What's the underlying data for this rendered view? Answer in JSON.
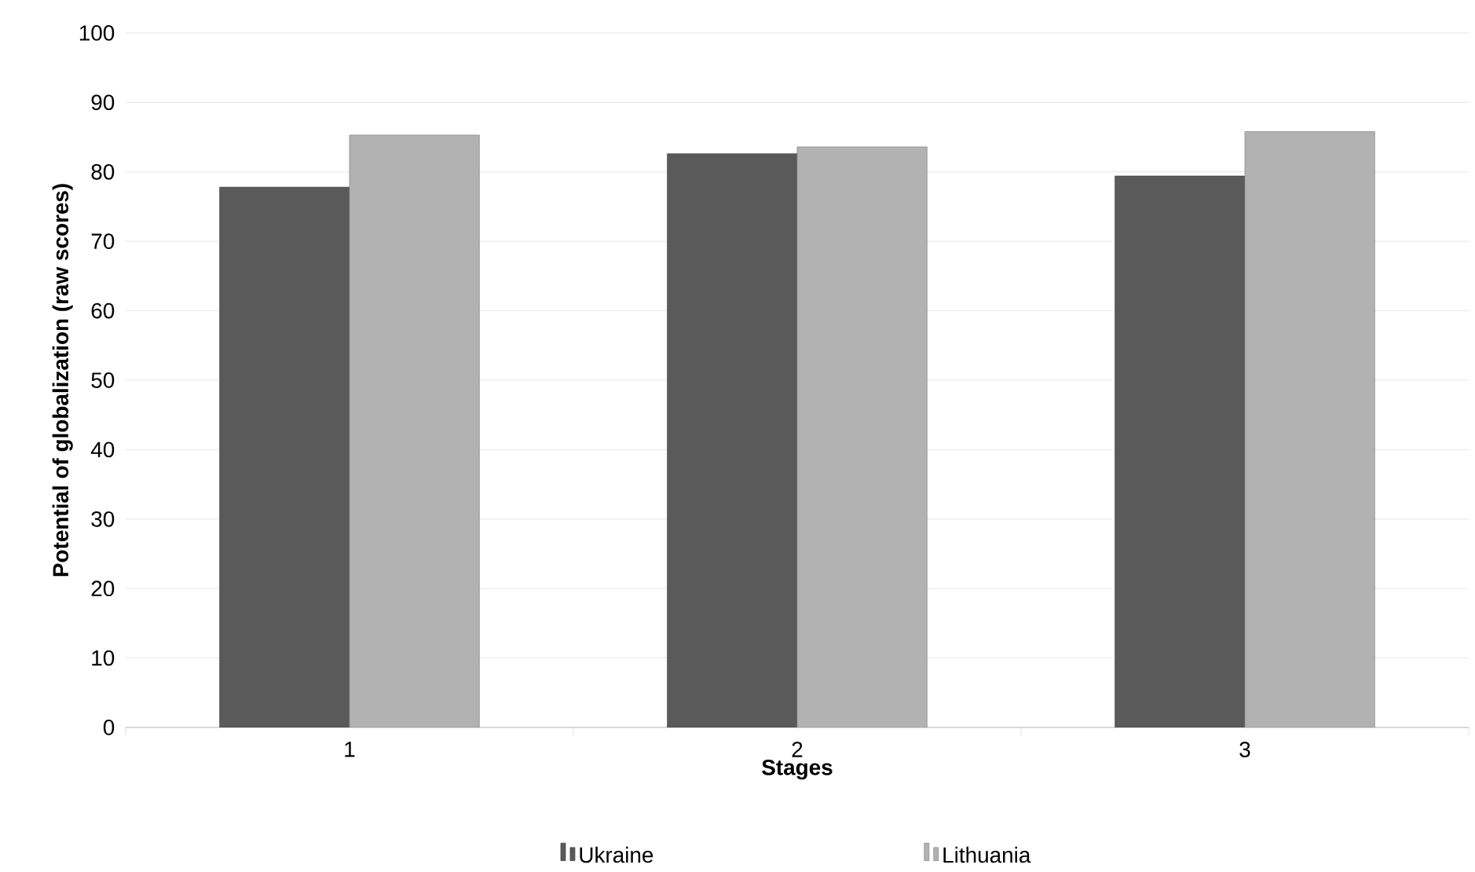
{
  "chart_data": {
    "type": "bar",
    "xlabel": "Stages",
    "ylabel": "Potential of globalization (raw scores)",
    "categories": [
      "1",
      "2",
      "3"
    ],
    "series": [
      {
        "name": "Ukraine",
        "color": "#5a5a5a",
        "values": [
          77.8,
          82.6,
          79.4
        ]
      },
      {
        "name": "Lithuania",
        "color": "#b2b2b2",
        "values": [
          85.3,
          83.6,
          85.8
        ]
      }
    ],
    "ylim": [
      0,
      100
    ],
    "yticks": [
      0,
      10,
      20,
      30,
      40,
      50,
      60,
      70,
      80,
      90,
      100
    ],
    "grid": "y",
    "legend": "bottom"
  }
}
